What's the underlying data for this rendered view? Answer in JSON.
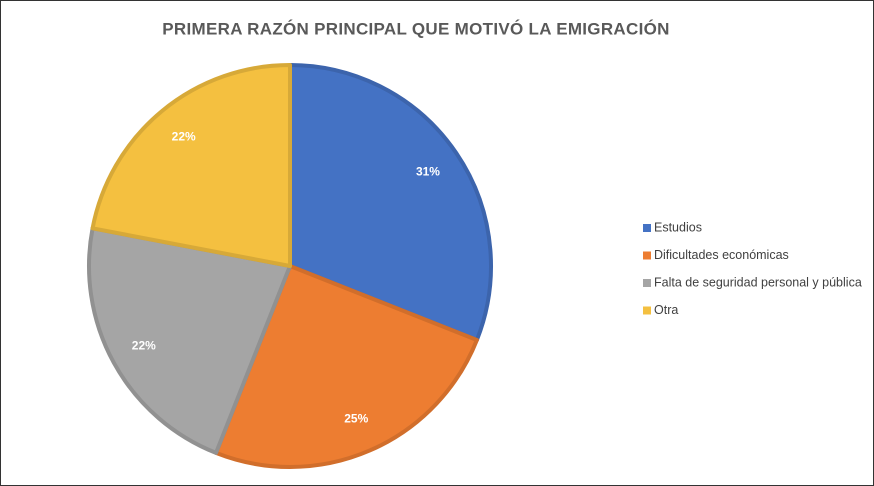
{
  "chart_data": {
    "type": "pie",
    "title": "PRIMERA RAZÓN PRINCIPAL QUE MOTIVÓ LA EMIGRACIÓN",
    "categories": [
      "Estudios",
      "Dificultades económicas",
      "Falta de seguridad personal y pública",
      "Otra"
    ],
    "values": [
      31,
      25,
      22,
      22
    ],
    "value_labels": [
      "31%",
      "25%",
      "22%",
      "22%"
    ],
    "colors": [
      "#4472c4",
      "#ed7d31",
      "#a5a5a5",
      "#f4c040"
    ],
    "legend": "right"
  }
}
